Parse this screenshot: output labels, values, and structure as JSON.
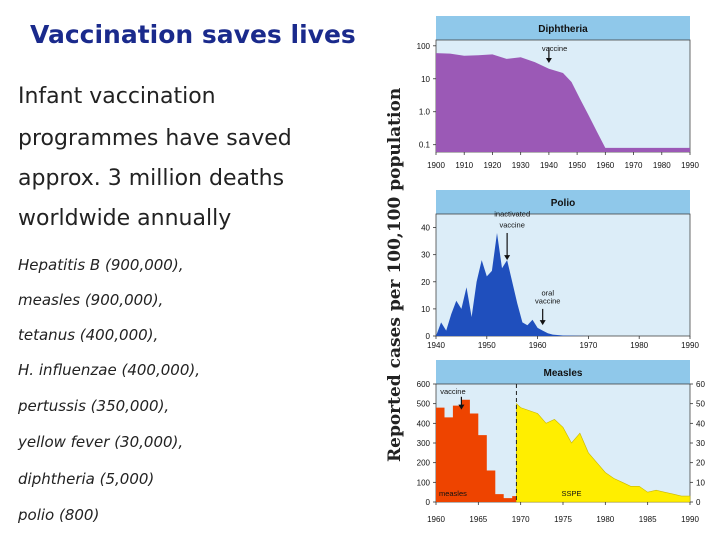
{
  "slide": {
    "title": "Vaccination saves lives",
    "intro_lines": [
      "Infant vaccination",
      "programmes have saved",
      "approx. 3 million deaths",
      "worldwide annually"
    ],
    "deaths": [
      "Hepatitis B (900,000),",
      "measles (900,000),",
      "tetanus (400,000),",
      "H. influenzae (400,000),",
      "pertussis  (350,000),",
      "yellow fever (30,000),",
      "diphtheria (5,000)",
      "polio (800)"
    ],
    "y_axis_label": "Reported cases per 100,100 population"
  },
  "colors": {
    "title": "#1a2a8c",
    "header": "#8fc8ea",
    "plot_bg": "#dcedf8",
    "diphtheria": "#9b59b6",
    "polio": "#1f4fbd",
    "measles": "#ee4400",
    "sspe": "#ffee00"
  },
  "chart_data": [
    {
      "type": "area",
      "title": "Diphtheria",
      "y_scale": "log",
      "yticks": [
        "100",
        "10",
        "1.0",
        "0.1"
      ],
      "ytick_values": [
        100,
        10,
        1,
        0.1
      ],
      "ylim": [
        0.06,
        150
      ],
      "xlim": [
        1900,
        1990
      ],
      "xticks": [
        "1900",
        "1910",
        "1920",
        "1930",
        "1940",
        "1950",
        "1960",
        "1970",
        "1980",
        "1990"
      ],
      "xtick_values": [
        1900,
        1910,
        1920,
        1930,
        1940,
        1950,
        1960,
        1970,
        1980,
        1990
      ],
      "series": [
        {
          "name": "Diphtheria",
          "x": [
            1900,
            1905,
            1910,
            1915,
            1920,
            1925,
            1930,
            1935,
            1940,
            1945,
            1948,
            1951,
            1954,
            1957,
            1960,
            1990
          ],
          "values": [
            60,
            58,
            50,
            52,
            55,
            40,
            45,
            32,
            20,
            15,
            8,
            2.5,
            0.8,
            0.25,
            0.08,
            0.08
          ]
        }
      ],
      "annotations": [
        {
          "text": "vaccine",
          "x": 1942,
          "y": 70
        }
      ]
    },
    {
      "type": "area",
      "title": "Polio",
      "yticks": [
        "40",
        "30",
        "20",
        "10",
        "0"
      ],
      "ytick_values": [
        40,
        30,
        20,
        10,
        0
      ],
      "ylim": [
        0,
        45
      ],
      "xlim": [
        1940,
        1990
      ],
      "xticks": [
        "1940",
        "1950",
        "1960",
        "1970",
        "1980",
        "1990"
      ],
      "xtick_values": [
        1940,
        1950,
        1960,
        1970,
        1980,
        1990
      ],
      "series": [
        {
          "name": "Polio",
          "x": [
            1940,
            1941,
            1942,
            1943,
            1944,
            1945,
            1946,
            1947,
            1948,
            1949,
            1950,
            1951,
            1952,
            1953,
            1954,
            1955,
            1956,
            1957,
            1958,
            1959,
            1960,
            1961,
            1962,
            1963,
            1965,
            1970,
            1990
          ],
          "values": [
            0,
            5,
            2,
            8,
            13,
            10,
            18,
            7,
            20,
            28,
            22,
            24,
            38,
            25,
            28,
            20,
            12,
            5,
            4,
            6,
            3,
            2,
            1,
            0.5,
            0.2,
            0,
            0
          ]
        }
      ],
      "annotations": [
        {
          "text": "inactivated",
          "x": 1955,
          "y": 44
        },
        {
          "text": "vaccine",
          "x": 1955,
          "y": 40
        },
        {
          "text": "oral",
          "x": 1962,
          "y": 15
        },
        {
          "text": "vaccine",
          "x": 1962,
          "y": 12
        }
      ]
    },
    {
      "type": "area",
      "title": "Measles",
      "yticks_left": [
        "600",
        "500",
        "400",
        "300",
        "200",
        "100",
        "0"
      ],
      "ytick_values_left": [
        600,
        500,
        400,
        300,
        200,
        100,
        0
      ],
      "ylim_left": [
        0,
        600
      ],
      "yticks_right": [
        "60",
        "50",
        "40",
        "30",
        "20",
        "10",
        "0"
      ],
      "ytick_values_right": [
        60,
        50,
        40,
        30,
        20,
        10,
        0
      ],
      "ylim_right": [
        0,
        60
      ],
      "xlim": [
        1960,
        1990
      ],
      "xticks": [
        "1960",
        "1965",
        "1970",
        "1975",
        "1980",
        "1985",
        "1990"
      ],
      "xtick_values": [
        1960,
        1965,
        1970,
        1975,
        1980,
        1985,
        1990
      ],
      "series": [
        {
          "name": "measles",
          "axis": "left",
          "x": [
            1960,
            1961,
            1961,
            1962,
            1962,
            1963,
            1963,
            1964,
            1964,
            1965,
            1965,
            1966,
            1966,
            1967,
            1967,
            1968,
            1968,
            1969,
            1969,
            1970,
            1970,
            1972,
            1972,
            1974,
            1974,
            1976,
            1976,
            1978,
            1978,
            1980,
            1980,
            1981,
            1981
          ],
          "values": [
            480,
            480,
            430,
            430,
            490,
            490,
            520,
            520,
            450,
            450,
            340,
            340,
            160,
            160,
            40,
            40,
            20,
            20,
            30,
            30,
            40,
            40,
            20,
            20,
            35,
            35,
            30,
            30,
            15,
            15,
            5,
            5,
            0
          ]
        },
        {
          "name": "SSPE",
          "axis": "right",
          "x": [
            1969.5,
            1970,
            1972,
            1973,
            1974,
            1975,
            1976,
            1977,
            1978,
            1979,
            1980,
            1981,
            1982,
            1983,
            1984,
            1985,
            1986,
            1987,
            1988,
            1989,
            1990
          ],
          "values": [
            50,
            48,
            45,
            40,
            42,
            38,
            30,
            35,
            25,
            20,
            15,
            12,
            10,
            8,
            8,
            5,
            6,
            5,
            4,
            3,
            3
          ]
        }
      ],
      "vline": {
        "x": 1969.5
      },
      "annotations": [
        {
          "text": "vaccine",
          "x": 1962,
          "y": 550,
          "axis": "left"
        },
        {
          "text": "measles",
          "x": 1962,
          "y": 30,
          "axis": "left"
        },
        {
          "text": "SSPE",
          "x": 1976,
          "y": 30,
          "axis": "left"
        }
      ]
    }
  ]
}
